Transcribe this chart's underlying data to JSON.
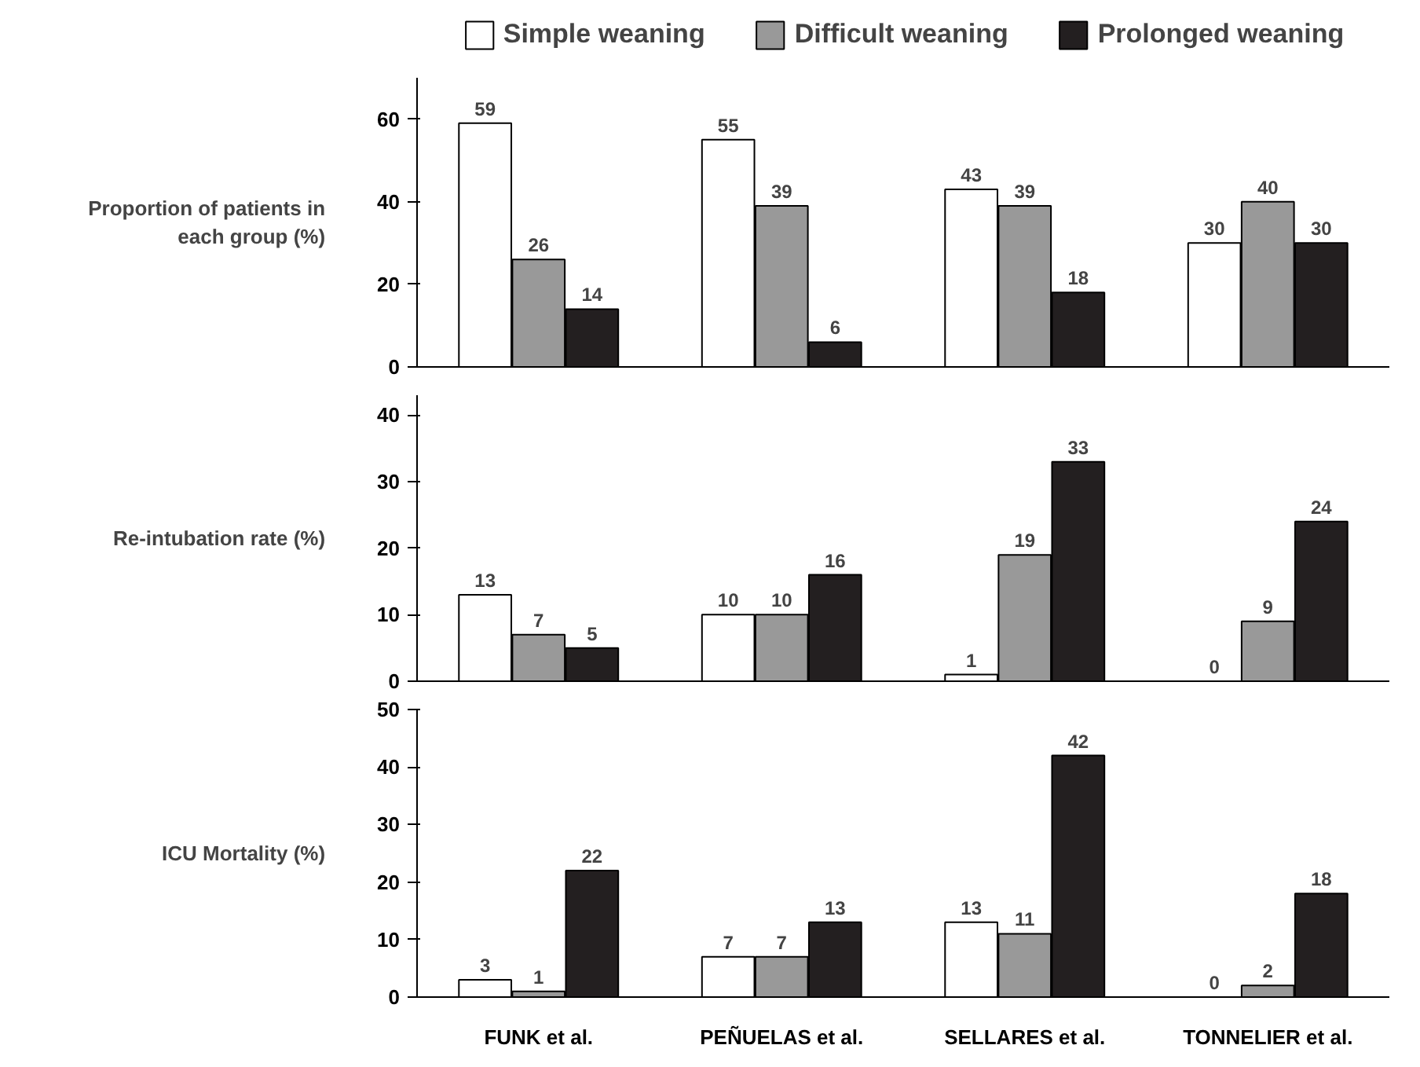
{
  "chart_data": [
    {
      "type": "bar",
      "title": "Proportion of patients in each group (%)",
      "categories": [
        "FUNK et al.",
        "PEÑUELAS et al.",
        "SELLARES et al.",
        "TONNELIER et al."
      ],
      "series": [
        {
          "name": "Simple weaning",
          "color": "#ffffff",
          "values": [
            59,
            55,
            43,
            30
          ]
        },
        {
          "name": "Difficult weaning",
          "color": "#999999",
          "values": [
            26,
            39,
            39,
            40
          ]
        },
        {
          "name": "Prolonged weaning",
          "color": "#231f20",
          "values": [
            14,
            6,
            18,
            30
          ]
        }
      ],
      "ylim": [
        0,
        70
      ],
      "yticks": [
        0,
        20,
        40,
        60
      ],
      "data_labels": true,
      "grid": false,
      "legend": "top",
      "tick_labels": "y"
    },
    {
      "type": "bar",
      "title": "Re-intubation rate (%)",
      "categories": [
        "FUNK et al.",
        "PEÑUELAS et al.",
        "SELLARES et al.",
        "TONNELIER et al."
      ],
      "series": [
        {
          "color": "#ffffff",
          "values": [
            13,
            10,
            1,
            0
          ]
        },
        {
          "color": "#999999",
          "values": [
            7,
            10,
            19,
            9
          ]
        },
        {
          "color": "#231f20",
          "values": [
            5,
            16,
            33,
            24
          ]
        }
      ],
      "ylim": [
        0,
        43
      ],
      "yticks": [
        0,
        10,
        20,
        30,
        40
      ],
      "data_labels": true,
      "grid": false,
      "tick_labels": "y"
    },
    {
      "type": "bar",
      "title": "ICU Mortality (%)",
      "categories": [
        "FUNK et al.",
        "PEÑUELAS et al.",
        "SELLARES et al.",
        "TONNELIER et al."
      ],
      "series": [
        {
          "color": "#ffffff",
          "values": [
            3,
            7,
            13,
            0
          ]
        },
        {
          "color": "#999999",
          "values": [
            1,
            7,
            11,
            2
          ]
        },
        {
          "color": "#231f20",
          "values": [
            22,
            13,
            42,
            18
          ]
        }
      ],
      "ylim": [
        0,
        50
      ],
      "yticks": [
        0,
        10,
        20,
        30,
        40,
        50
      ],
      "data_labels": true,
      "grid": false
    }
  ]
}
